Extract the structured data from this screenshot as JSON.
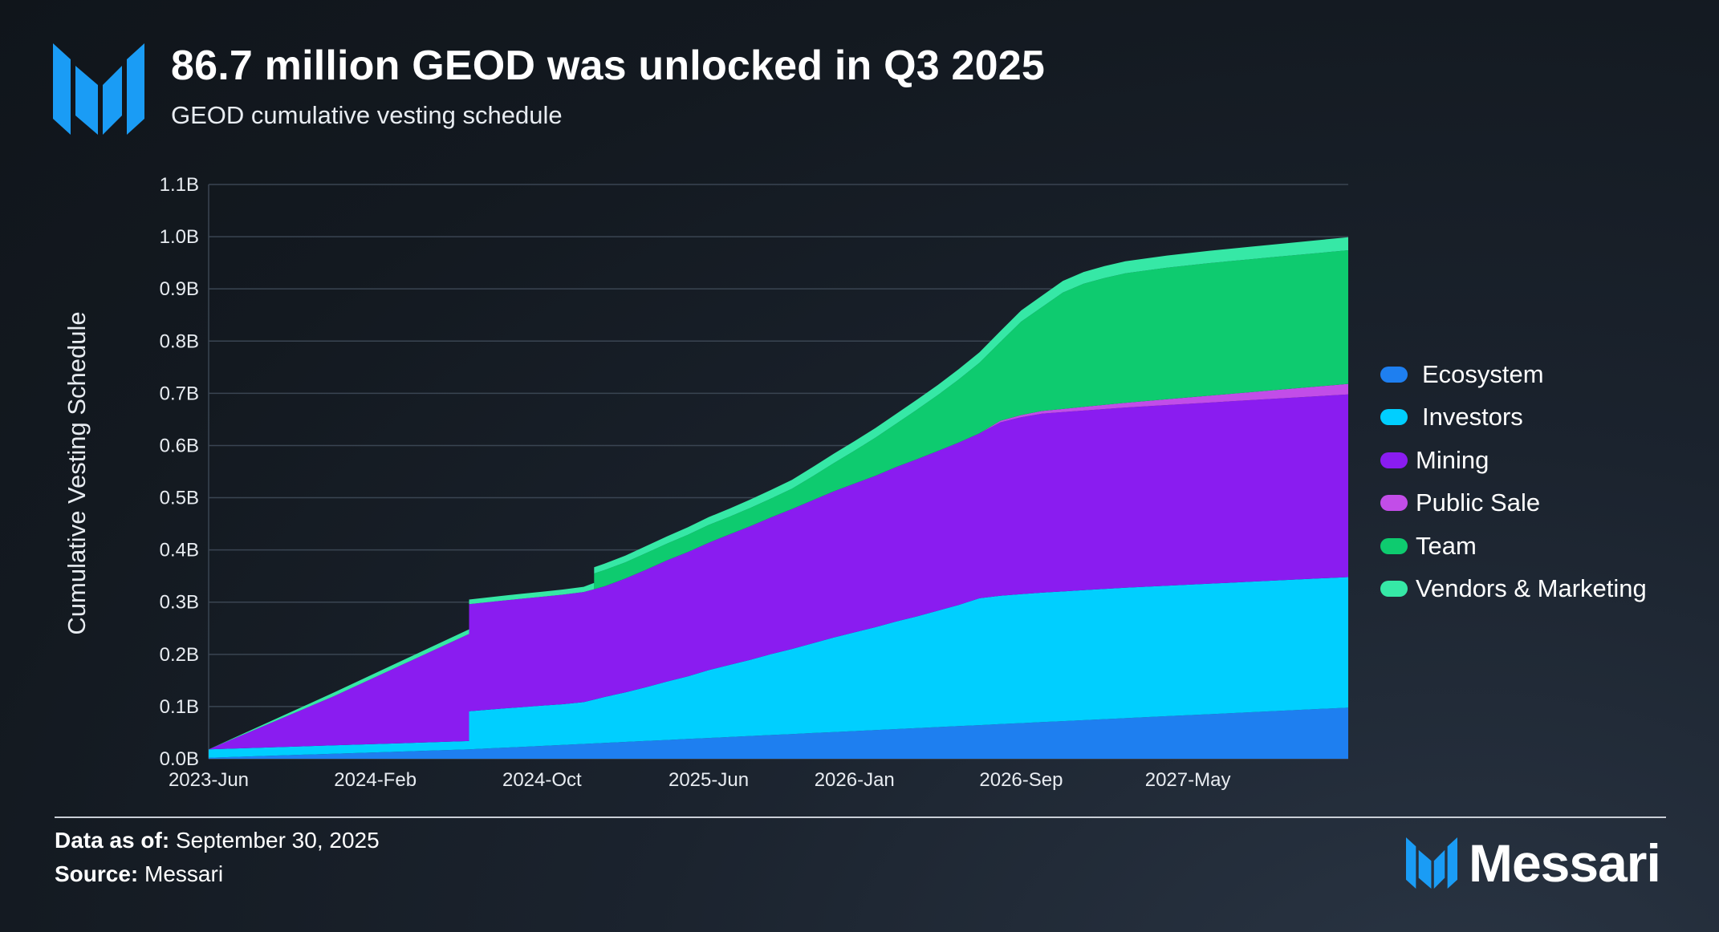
{
  "header": {
    "title": "86.7 million GEOD was unlocked in Q3 2025",
    "subtitle": "GEOD cumulative vesting schedule"
  },
  "colors": {
    "brand_blue": "#1a9cf5",
    "grid": "#3a4552",
    "axis_text": "#e8ecf1"
  },
  "chart_data": {
    "type": "area",
    "stacked": true,
    "title": "GEOD cumulative vesting schedule",
    "xlabel": "",
    "ylabel": "Cumulative Vesting Schedule",
    "x_unit": "months since 2023-Jun",
    "xlim": [
      0,
      54.7
    ],
    "ylim": [
      0,
      1.1
    ],
    "y_ticks": [
      0.0,
      0.1,
      0.2,
      0.3,
      0.4,
      0.5,
      0.6,
      0.7,
      0.8,
      0.9,
      1.0,
      1.1
    ],
    "y_tick_labels": [
      "0.0B",
      "0.1B",
      "0.2B",
      "0.3B",
      "0.4B",
      "0.5B",
      "0.6B",
      "0.7B",
      "0.8B",
      "0.9B",
      "1.0B",
      "1.1B"
    ],
    "x_ticks": [
      0,
      8,
      16,
      24,
      31,
      39,
      47
    ],
    "x_tick_labels": [
      "2023-Jun",
      "2024-Feb",
      "2024-Oct",
      "2025-Jun",
      "2026-Jan",
      "2026-Sep",
      "2027-May"
    ],
    "grid": true,
    "legend_position": "right",
    "series": [
      {
        "name": "Ecosystem",
        "color": "#1e7ff0",
        "points": [
          [
            0,
            0.002
          ],
          [
            12.5,
            0.018
          ],
          [
            54.7,
            0.098
          ]
        ]
      },
      {
        "name": "Investors",
        "color": "#00cfff",
        "points": [
          [
            0,
            0.016
          ],
          [
            12.5,
            0.016
          ],
          [
            12.5,
            0.073
          ],
          [
            14,
            0.075
          ],
          [
            15,
            0.076
          ],
          [
            16,
            0.077
          ],
          [
            17,
            0.078
          ],
          [
            18,
            0.08
          ],
          [
            19,
            0.088
          ],
          [
            20,
            0.095
          ],
          [
            21,
            0.103
          ],
          [
            22,
            0.112
          ],
          [
            23,
            0.12
          ],
          [
            24,
            0.13
          ],
          [
            25,
            0.138
          ],
          [
            26,
            0.146
          ],
          [
            27,
            0.155
          ],
          [
            28,
            0.163
          ],
          [
            29,
            0.172
          ],
          [
            30,
            0.181
          ],
          [
            31,
            0.189
          ],
          [
            32,
            0.197
          ],
          [
            33,
            0.206
          ],
          [
            34,
            0.214
          ],
          [
            35,
            0.223
          ],
          [
            36,
            0.232
          ],
          [
            37,
            0.243
          ],
          [
            38,
            0.246
          ],
          [
            39,
            0.247
          ],
          [
            40,
            0.248
          ],
          [
            44,
            0.25
          ],
          [
            54.7,
            0.25
          ]
        ]
      },
      {
        "name": "Mining",
        "color": "#8a1cf0",
        "points": [
          [
            0,
            0.0
          ],
          [
            6,
            0.094
          ],
          [
            12.5,
            0.205
          ],
          [
            12.5,
            0.205
          ],
          [
            19,
            0.212
          ],
          [
            20,
            0.218
          ],
          [
            21,
            0.225
          ],
          [
            22,
            0.232
          ],
          [
            23,
            0.238
          ],
          [
            24,
            0.244
          ],
          [
            25,
            0.25
          ],
          [
            26,
            0.256
          ],
          [
            27,
            0.262
          ],
          [
            28,
            0.268
          ],
          [
            29,
            0.274
          ],
          [
            30,
            0.28
          ],
          [
            31,
            0.285
          ],
          [
            32,
            0.29
          ],
          [
            33,
            0.296
          ],
          [
            34,
            0.301
          ],
          [
            35,
            0.306
          ],
          [
            36,
            0.311
          ],
          [
            37,
            0.316
          ],
          [
            38,
            0.332
          ],
          [
            39,
            0.339
          ],
          [
            40,
            0.343
          ],
          [
            44,
            0.345
          ],
          [
            54.7,
            0.35
          ]
        ]
      },
      {
        "name": "Public Sale",
        "color": "#c24de8",
        "points": [
          [
            0,
            0.0
          ],
          [
            37,
            0.0
          ],
          [
            38,
            0.003
          ],
          [
            40,
            0.005
          ],
          [
            54.7,
            0.02
          ]
        ]
      },
      {
        "name": "Team",
        "color": "#0ecb6f",
        "points": [
          [
            0,
            0.0
          ],
          [
            18.5,
            0.0
          ],
          [
            18.5,
            0.03
          ],
          [
            19,
            0.031
          ],
          [
            20,
            0.031
          ],
          [
            21,
            0.032
          ],
          [
            22,
            0.032
          ],
          [
            23,
            0.033
          ],
          [
            24,
            0.034
          ],
          [
            25,
            0.034
          ],
          [
            26,
            0.035
          ],
          [
            27,
            0.036
          ],
          [
            28,
            0.039
          ],
          [
            29,
            0.046
          ],
          [
            30,
            0.054
          ],
          [
            31,
            0.063
          ],
          [
            32,
            0.073
          ],
          [
            33,
            0.083
          ],
          [
            34,
            0.095
          ],
          [
            35,
            0.107
          ],
          [
            36,
            0.121
          ],
          [
            37,
            0.135
          ],
          [
            38,
            0.151
          ],
          [
            39,
            0.179
          ],
          [
            40,
            0.199
          ],
          [
            41,
            0.223
          ],
          [
            42,
            0.236
          ],
          [
            43,
            0.243
          ],
          [
            44,
            0.248
          ],
          [
            46,
            0.252
          ],
          [
            48,
            0.254
          ],
          [
            51,
            0.255
          ],
          [
            54.7,
            0.256
          ]
        ]
      },
      {
        "name": "Vendors & Marketing",
        "color": "#36e8a6",
        "points": [
          [
            0,
            0.0
          ],
          [
            6,
            0.007
          ],
          [
            12.5,
            0.009
          ],
          [
            18,
            0.01
          ],
          [
            18.5,
            0.012
          ],
          [
            22,
            0.014
          ],
          [
            26,
            0.016
          ],
          [
            30,
            0.018
          ],
          [
            34,
            0.019
          ],
          [
            37,
            0.02
          ],
          [
            40,
            0.022
          ],
          [
            44,
            0.023
          ],
          [
            50,
            0.024
          ],
          [
            54.7,
            0.025
          ]
        ]
      }
    ]
  },
  "footer": {
    "data_as_of_label": "Data as of:",
    "data_as_of_value": "September 30, 2025",
    "source_label": "Source:",
    "source_value": "Messari",
    "brand": "Messari"
  }
}
